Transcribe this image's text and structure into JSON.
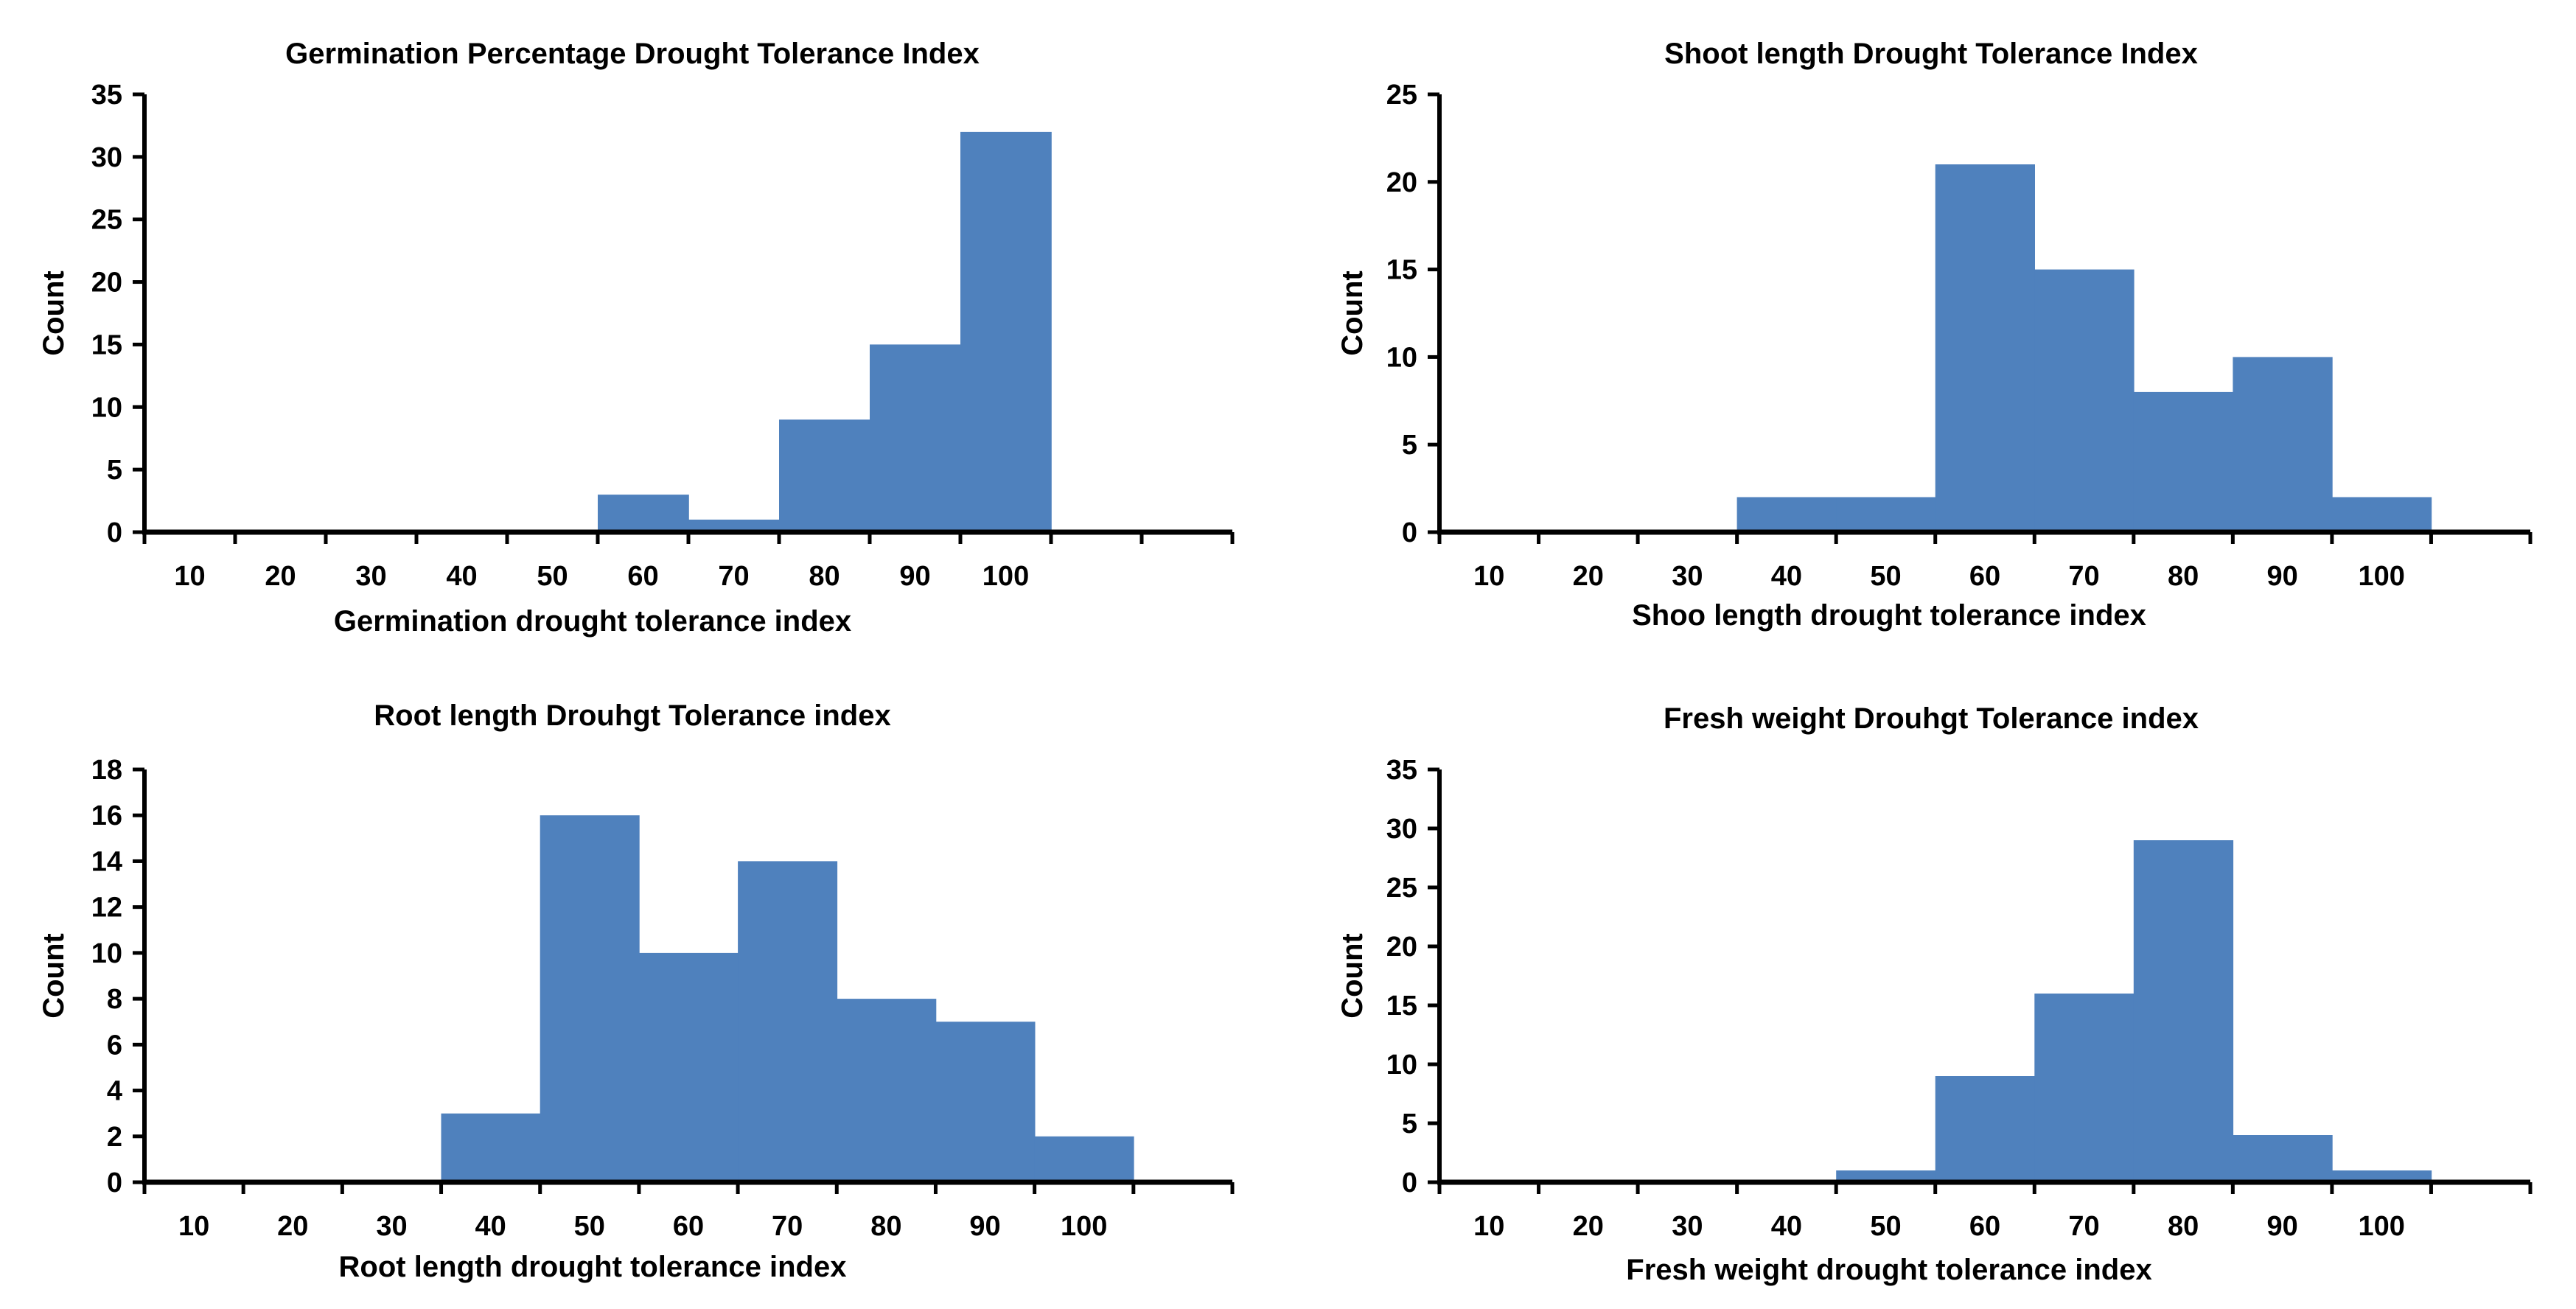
{
  "colors": {
    "bar": "#4f81bd",
    "axis": "#000000"
  },
  "chart_data": [
    {
      "type": "bar",
      "title": "Germination Percentage Drought Tolerance Index",
      "xlabel": "Germination drought tolerance index",
      "ylabel": "Count",
      "ylim": [
        0,
        35
      ],
      "yticks": [
        "0",
        "5",
        "10",
        "15",
        "20",
        "25",
        "30",
        "35"
      ],
      "categories": [
        "10",
        "20",
        "30",
        "40",
        "50",
        "60",
        "70",
        "80",
        "90",
        "100"
      ],
      "values": [
        0,
        0,
        0,
        0,
        0,
        3,
        1,
        9,
        15,
        32
      ],
      "grid": false,
      "legend": "none"
    },
    {
      "type": "bar",
      "title": "Shoot length Drought Tolerance Index",
      "xlabel": "Shoo length drought tolerance index",
      "ylabel": "Count",
      "ylim": [
        0,
        25
      ],
      "yticks": [
        "0",
        "5",
        "10",
        "15",
        "20",
        "25"
      ],
      "categories": [
        "10",
        "20",
        "30",
        "40",
        "50",
        "60",
        "70",
        "80",
        "90",
        "100"
      ],
      "values": [
        0,
        0,
        0,
        2,
        2,
        21,
        15,
        8,
        10,
        2
      ],
      "grid": false,
      "legend": "none"
    },
    {
      "type": "bar",
      "title": "Root length Drouhgt Tolerance index",
      "xlabel": "Root length drought tolerance index",
      "ylabel": "Count",
      "ylim": [
        0,
        18
      ],
      "yticks": [
        "0",
        "2",
        "4",
        "6",
        "8",
        "10",
        "12",
        "14",
        "16",
        "18"
      ],
      "categories": [
        "10",
        "20",
        "30",
        "40",
        "50",
        "60",
        "70",
        "80",
        "90",
        "100"
      ],
      "values": [
        0,
        0,
        0,
        3,
        16,
        10,
        14,
        8,
        7,
        2
      ],
      "grid": false,
      "legend": "none"
    },
    {
      "type": "bar",
      "title": "Fresh weight  Drouhgt Tolerance index",
      "xlabel": "Fresh weight drought tolerance index",
      "ylabel": "Count",
      "ylim": [
        0,
        35
      ],
      "yticks": [
        "0",
        "5",
        "10",
        "15",
        "20",
        "25",
        "30",
        "35"
      ],
      "categories": [
        "10",
        "20",
        "30",
        "40",
        "50",
        "60",
        "70",
        "80",
        "90",
        "100"
      ],
      "values": [
        0,
        0,
        0,
        0,
        1,
        9,
        16,
        29,
        4,
        1
      ],
      "grid": false,
      "legend": "none"
    }
  ]
}
